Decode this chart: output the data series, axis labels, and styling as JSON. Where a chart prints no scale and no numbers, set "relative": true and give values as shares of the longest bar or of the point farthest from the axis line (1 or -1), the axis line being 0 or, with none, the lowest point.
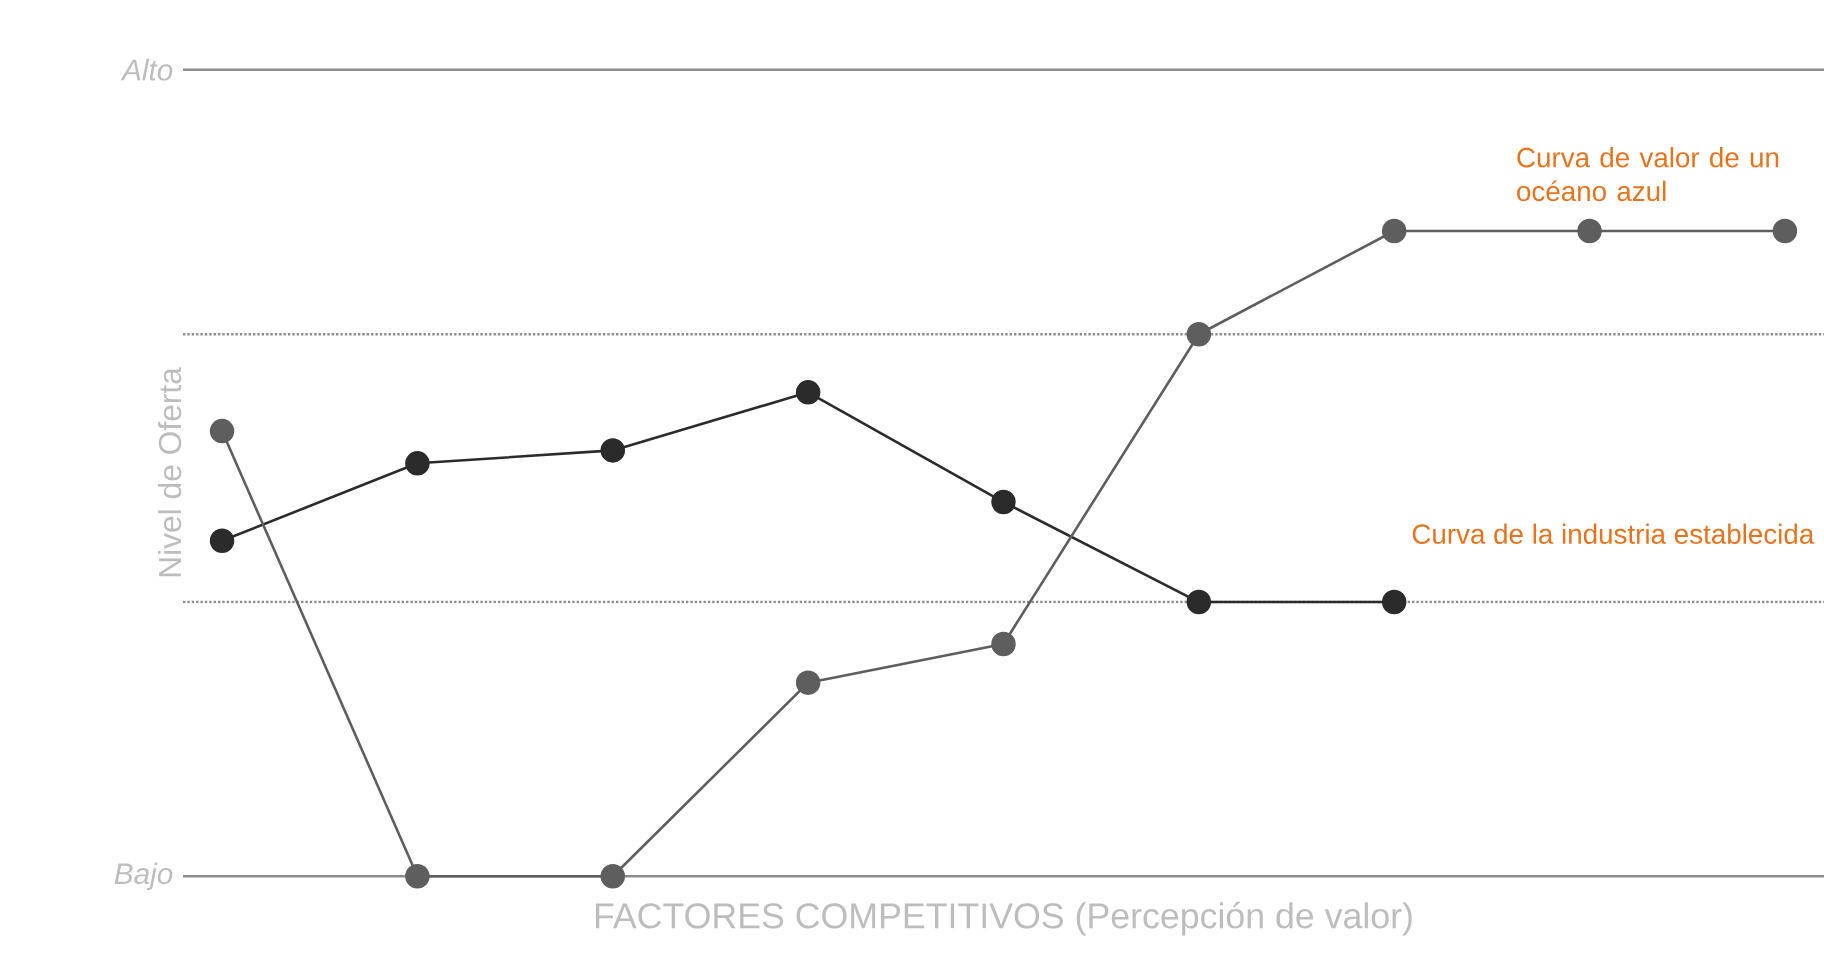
{
  "chart_data": {
    "type": "line",
    "xlabel": "FACTORES COMPETITIVOS (Percepción de valor)",
    "ylabel": "Nivel de Oferta",
    "categories": [
      null,
      null,
      null,
      null,
      null,
      null,
      null,
      null,
      null
    ],
    "relative": true,
    "ref_lines": [
      {
        "axis": "y",
        "value": 0,
        "label": "Bajo",
        "line_style": "solid",
        "color": "#8c8c8c"
      },
      {
        "axis": "y",
        "value": 0.425,
        "label": null,
        "line_style": "dotted",
        "color": "#8c8c8c"
      },
      {
        "axis": "y",
        "value": 0.84,
        "label": null,
        "line_style": "dotted",
        "color": "#8c8c8c"
      },
      {
        "axis": "y",
        "value": 1.25,
        "label": "Alto",
        "line_style": "solid",
        "color": "#8c8c8c"
      }
    ],
    "legend": false,
    "marker": "circle",
    "line_style": "solid",
    "series": [
      {
        "name": "Curva de la industria establecida",
        "color": "#2b2b2b",
        "values": [
          0.52,
          0.64,
          0.66,
          0.75,
          0.58,
          0.425,
          0.425,
          null,
          null
        ]
      },
      {
        "name": "Curva de valor de un océano azul",
        "color": "#5e5e5e",
        "values": [
          0.69,
          0,
          0,
          0.3,
          0.36,
          0.84,
          1,
          1,
          1
        ]
      }
    ]
  }
}
